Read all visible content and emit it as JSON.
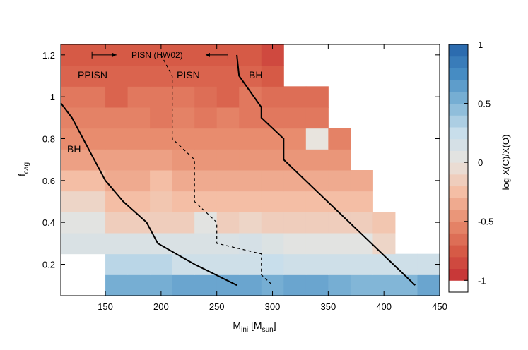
{
  "chart_data": {
    "type": "heatmap",
    "xlabel": "M",
    "xlabel_sub": "ini",
    "xlabel_unit_open": " [M",
    "xlabel_unit_sub": "sun",
    "xlabel_unit_close": "]",
    "ylabel": "f",
    "ylabel_sub": "cag",
    "colorbar_label": "log X(C)/X(O)",
    "xlim": [
      110,
      450
    ],
    "ylim": [
      0.05,
      1.25
    ],
    "x_ticks": [
      150,
      200,
      250,
      300,
      350,
      400,
      450
    ],
    "y_ticks": [
      0.2,
      0.4,
      0.6,
      0.8,
      1,
      1.2
    ],
    "colorbar_ticks": [
      1,
      0.5,
      0,
      -0.5,
      -1
    ],
    "colorbar_range": [
      -1.1,
      1
    ],
    "x_bins": [
      110,
      130,
      150,
      170,
      190,
      210,
      230,
      250,
      270,
      290,
      310,
      330,
      350,
      370,
      390,
      410,
      430,
      450
    ],
    "y_bins": [
      0.05,
      0.15,
      0.25,
      0.35,
      0.45,
      0.55,
      0.65,
      0.75,
      0.85,
      0.95,
      1.05,
      1.15,
      1.25
    ],
    "cells": [
      [
        null,
        null,
        0.55,
        0.55,
        0.55,
        0.6,
        0.6,
        0.6,
        0.6,
        0.55,
        0.6,
        0.6,
        0.55,
        0.5,
        0.5,
        0.5,
        0.6
      ],
      [
        null,
        null,
        0.3,
        0.3,
        0.3,
        0.2,
        0.2,
        0.2,
        0.2,
        0.25,
        0.2,
        0.2,
        0.2,
        0.2,
        0.2,
        0.2,
        0.2
      ],
      [
        0.12,
        0.12,
        0.12,
        0.12,
        0.12,
        0.12,
        0.12,
        0.12,
        0.15,
        0.1,
        0.05,
        0.05,
        0.05,
        0.05,
        -0.1,
        null,
        null
      ],
      [
        0.05,
        0.05,
        -0.15,
        -0.15,
        -0.15,
        -0.15,
        0.05,
        -0.15,
        -0.1,
        -0.15,
        -0.15,
        -0.15,
        -0.15,
        -0.15,
        -0.2,
        null,
        null
      ],
      [
        -0.1,
        -0.1,
        -0.25,
        -0.25,
        -0.2,
        -0.25,
        -0.25,
        -0.25,
        -0.25,
        -0.25,
        -0.25,
        -0.25,
        -0.25,
        -0.25,
        null,
        null,
        null
      ],
      [
        -0.25,
        -0.25,
        -0.35,
        -0.35,
        -0.25,
        -0.35,
        -0.35,
        -0.35,
        -0.35,
        -0.35,
        -0.35,
        -0.35,
        -0.35,
        -0.35,
        null,
        null,
        null
      ],
      [
        -0.4,
        -0.4,
        -0.4,
        -0.4,
        -0.4,
        -0.45,
        -0.45,
        -0.45,
        -0.45,
        -0.45,
        -0.45,
        -0.45,
        -0.45,
        null,
        null,
        null,
        null
      ],
      [
        -0.5,
        -0.5,
        -0.5,
        -0.5,
        -0.5,
        -0.5,
        -0.5,
        -0.5,
        -0.5,
        -0.5,
        -0.5,
        0.0,
        -0.55,
        null,
        null,
        null,
        null
      ],
      [
        -0.55,
        -0.55,
        -0.55,
        -0.55,
        -0.6,
        -0.55,
        -0.6,
        -0.55,
        -0.6,
        -0.6,
        -0.6,
        -0.6,
        null,
        null,
        null,
        null,
        null
      ],
      [
        -0.6,
        -0.6,
        -0.7,
        -0.6,
        -0.6,
        -0.6,
        -0.65,
        -0.7,
        -0.6,
        -0.65,
        -0.65,
        -0.65,
        null,
        null,
        null,
        null,
        null
      ],
      [
        -0.7,
        -0.7,
        -0.7,
        -0.7,
        -0.7,
        -0.7,
        -0.7,
        -0.7,
        -0.7,
        -0.75,
        null,
        null,
        null,
        null,
        null,
        null,
        null
      ],
      [
        -0.75,
        -0.75,
        -0.75,
        -0.75,
        -0.75,
        -0.75,
        -0.75,
        -0.75,
        -0.75,
        -0.85,
        null,
        null,
        null,
        null,
        null,
        null,
        null
      ]
    ],
    "annotations": {
      "ppisn": "PPISN",
      "pisn": "PISN",
      "pisn_hw02": "PISN (HW02)",
      "bh_left": "BH",
      "bh_right": "BH"
    },
    "curves": {
      "left_boundary": {
        "x": [
          110,
          120,
          150,
          166,
          187,
          197,
          230,
          268
        ],
        "y": [
          0.97,
          0.9,
          0.6,
          0.5,
          0.4,
          0.3,
          0.2,
          0.1
        ]
      },
      "right_boundary": {
        "x": [
          268,
          270,
          290,
          290,
          310,
          310,
          428
        ],
        "y": [
          1.2,
          1.1,
          0.95,
          0.9,
          0.8,
          0.7,
          0.1
        ]
      },
      "hw02_boundary": {
        "x": [
          200,
          210,
          210,
          230,
          230,
          250,
          250,
          290,
          290,
          300
        ],
        "y": [
          1.2,
          1.1,
          0.8,
          0.7,
          0.5,
          0.4,
          0.3,
          0.25,
          0.15,
          0.1
        ]
      }
    },
    "legend_arrows": {
      "right_arrow_x": [
        138,
        160
      ],
      "left_arrow_x": [
        240,
        260
      ],
      "y": 1.2
    }
  }
}
